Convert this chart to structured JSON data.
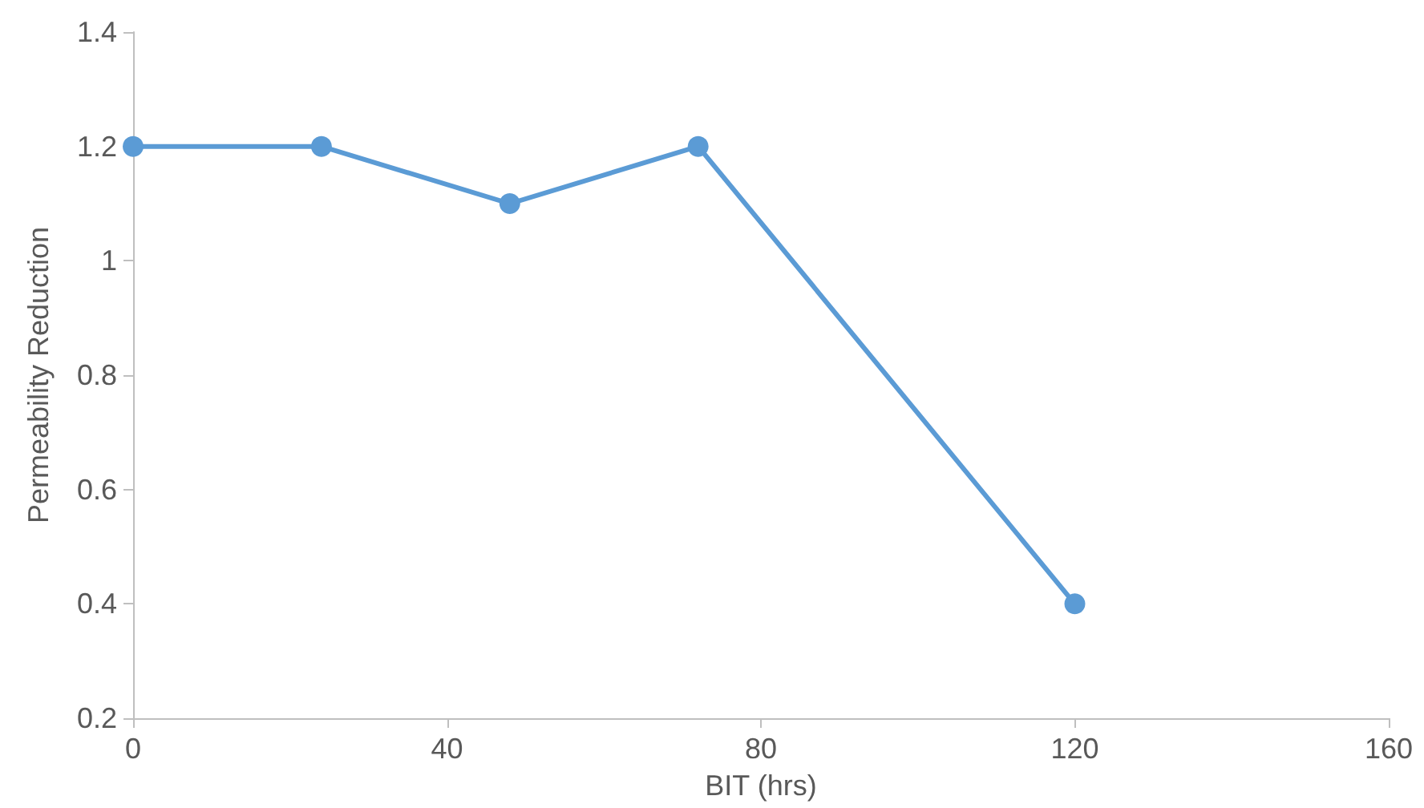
{
  "chart_data": {
    "type": "line",
    "xlabel": "BIT (hrs)",
    "ylabel": "Permeability Reduction",
    "x": [
      0,
      24,
      48,
      72,
      120
    ],
    "series": [
      {
        "color": "#5b9bd5",
        "values": [
          1.2,
          1.2,
          1.1,
          1.2,
          0.4
        ]
      }
    ],
    "xlim": [
      0,
      160
    ],
    "xticks": [
      0,
      40,
      80,
      120,
      160
    ],
    "ylim": [
      0.2,
      1.4
    ],
    "yticks": [
      0.2,
      0.4,
      0.6,
      0.8,
      1,
      1.2,
      1.4
    ],
    "grid": false,
    "marker": "circle",
    "line_style": "solid"
  }
}
